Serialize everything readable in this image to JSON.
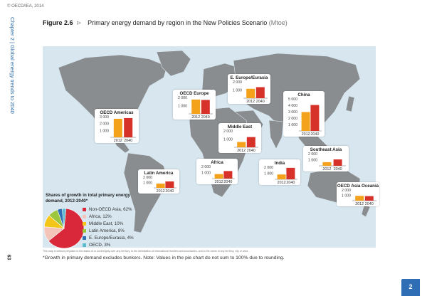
{
  "copyright": "© OECD/IEA, 2014",
  "side_label": "Chapter 2 | Global energy trends to 2040",
  "page_number": "63",
  "figure": {
    "number": "Figure 2.6",
    "arrow": "⊳",
    "title": "Primary energy demand by region in the New Policies Scenario",
    "unit": "(Mtoe)"
  },
  "pie_title": "Shares of growth in total primary energy demand, 2012-2040*",
  "disclaimer": "This map is without prejudice to the status of or sovereignty over any territory, to the delimitation of international frontiers and boundaries, and to the name of any territory, city or area.",
  "footnote": "*Growth in primary demand excludes bunkers. Note: Values in the pie chart do not sum to 100% due to rounding.",
  "chapter_tab": "2",
  "colors": {
    "bar_2012": "#f4a21b",
    "bar_2040": "#d7322a",
    "map_sea": "#d7e6ef",
    "land": "#8a8d90",
    "tab": "#2f6db5"
  },
  "chart_data": [
    {
      "type": "bar",
      "title": "OECD Americas",
      "categories": [
        "2012",
        "2040"
      ],
      "values": [
        2700,
        2800
      ],
      "yticks": [
        "3 000",
        "2 000",
        "1 000"
      ],
      "ylim": [
        0,
        3000
      ]
    },
    {
      "type": "bar",
      "title": "OECD Europe",
      "categories": [
        "2012",
        "2040"
      ],
      "values": [
        1750,
        1700
      ],
      "yticks": [
        "2 000",
        "1 000"
      ],
      "ylim": [
        0,
        2000
      ]
    },
    {
      "type": "bar",
      "title": "E. Europe/Eurasia",
      "categories": [
        "2012",
        "2040"
      ],
      "values": [
        1150,
        1350
      ],
      "yticks": [
        "2 000",
        "1 000"
      ],
      "ylim": [
        0,
        2000
      ]
    },
    {
      "type": "bar",
      "title": "China",
      "categories": [
        "2012",
        "2040"
      ],
      "values": [
        2950,
        4050
      ],
      "yticks": [
        "5 000",
        "4 000",
        "3 000",
        "2 000",
        "1 000"
      ],
      "ylim": [
        0,
        5000
      ]
    },
    {
      "type": "bar",
      "title": "Middle East",
      "categories": [
        "2012",
        "2040"
      ],
      "values": [
        650,
        1250
      ],
      "yticks": [
        "2 000",
        "1 000"
      ],
      "ylim": [
        0,
        2000
      ]
    },
    {
      "type": "bar",
      "title": "Latin America",
      "categories": [
        "2012",
        "2040"
      ],
      "values": [
        800,
        1200
      ],
      "yticks": [
        "2 000",
        "1 000"
      ],
      "ylim": [
        0,
        2000
      ]
    },
    {
      "type": "bar",
      "title": "Africa",
      "categories": [
        "2012",
        "2040"
      ],
      "values": [
        750,
        1250
      ],
      "yticks": [
        "2 000",
        "1 000"
      ],
      "ylim": [
        0,
        2000
      ]
    },
    {
      "type": "bar",
      "title": "India",
      "categories": [
        "2012",
        "2040"
      ],
      "values": [
        800,
        1900
      ],
      "yticks": [
        "2 000",
        "1 000"
      ],
      "ylim": [
        0,
        2000
      ]
    },
    {
      "type": "bar",
      "title": "Southeast Asia",
      "categories": [
        "2012",
        "2040"
      ],
      "values": [
        600,
        1050
      ],
      "yticks": [
        "2 000",
        "1 000"
      ],
      "ylim": [
        0,
        2000
      ]
    },
    {
      "type": "bar",
      "title": "OECD Asia Oceania",
      "categories": [
        "2012",
        "2040"
      ],
      "values": [
        900,
        850
      ],
      "yticks": [
        "2 000",
        "1 000"
      ],
      "ylim": [
        0,
        2000
      ]
    },
    {
      "type": "pie",
      "title": "Shares of growth in total primary energy demand, 2012-2040*",
      "slices": [
        {
          "label": "Non-OECD Asia, 62%",
          "value": 62,
          "color": "#d8283a"
        },
        {
          "label": "Africa, 12%",
          "value": 12,
          "color": "#f4c4b8"
        },
        {
          "label": "Middle East, 10%",
          "value": 10,
          "color": "#f3c619"
        },
        {
          "label": "Latin America, 8%",
          "value": 8,
          "color": "#9cc63b"
        },
        {
          "label": "E. Europe/Eurasia, 4%",
          "value": 4,
          "color": "#2e6fb6"
        },
        {
          "label": "OECD, 3%",
          "value": 3,
          "color": "#5bbccf"
        }
      ]
    }
  ]
}
